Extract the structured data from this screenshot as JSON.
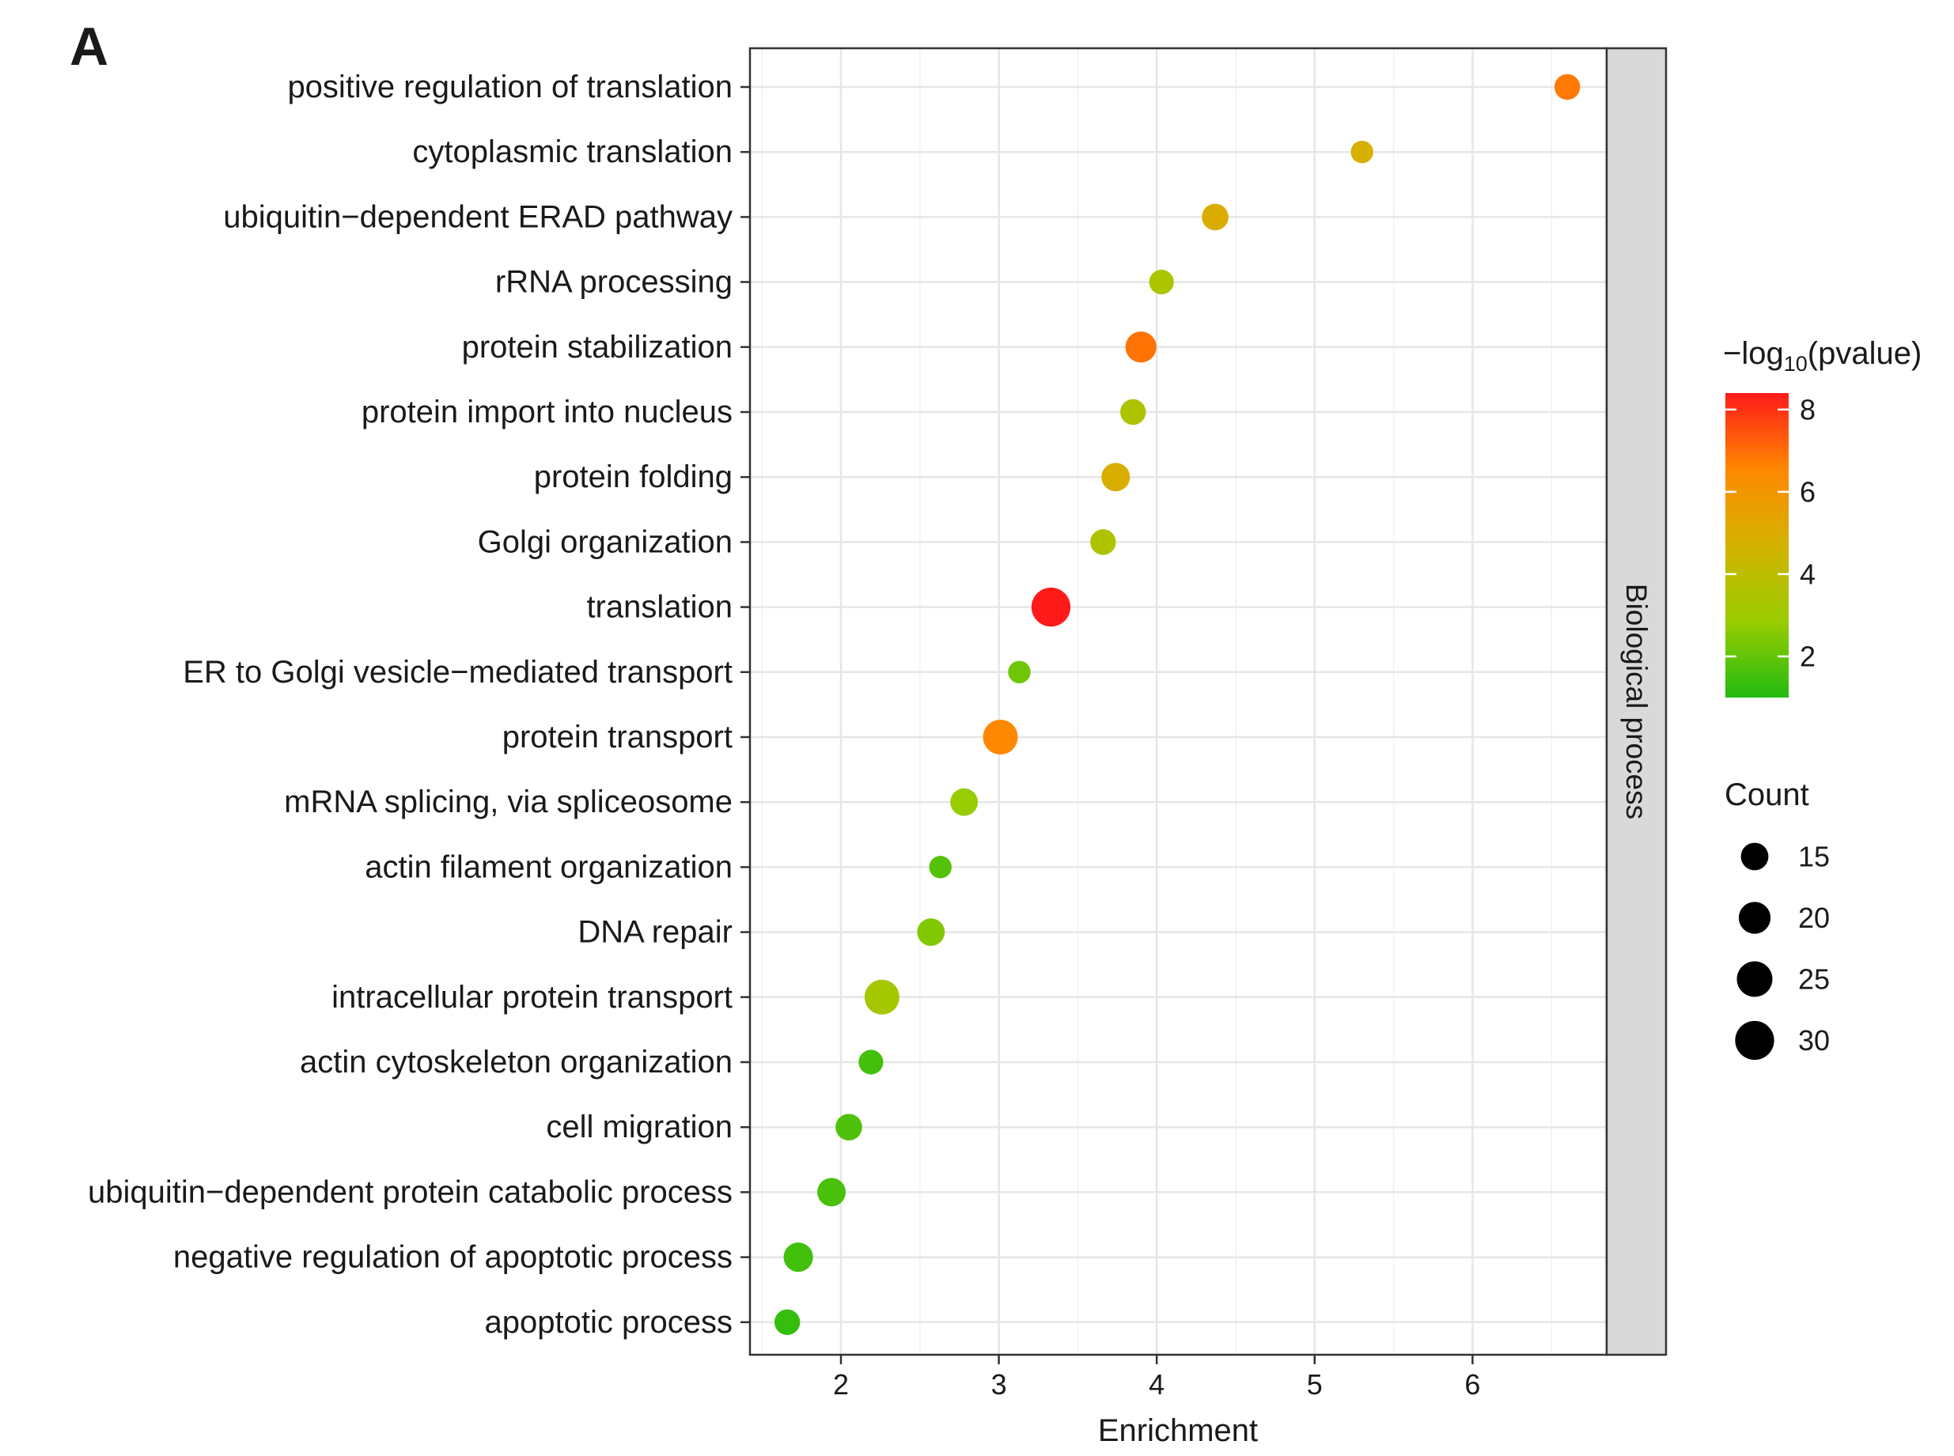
{
  "panel_label": "A",
  "chart_data": {
    "type": "scatter",
    "title": "",
    "xlabel": "Enrichment",
    "ylabel": "",
    "xlim": [
      1.4,
      6.84
    ],
    "x_ticks": [
      2,
      3,
      4,
      5,
      6
    ],
    "grid": true,
    "facet_label": "Biological process",
    "categories": [
      "positive regulation of translation",
      "cytoplasmic translation",
      "ubiquitin−dependent ERAD pathway",
      "rRNA processing",
      "protein stabilization",
      "protein import into nucleus",
      "protein folding",
      "Golgi organization",
      "translation",
      "ER to Golgi vesicle−mediated transport",
      "protein transport",
      "mRNA splicing, via spliceosome",
      "actin filament organization",
      "DNA repair",
      "intracellular protein transport",
      "actin cytoskeleton organization",
      "cell migration",
      "ubiquitin−dependent protein catabolic process",
      "negative regulation of apoptotic process",
      "apoptotic process"
    ],
    "enrichment": [
      6.6,
      5.3,
      4.37,
      4.03,
      3.9,
      3.85,
      3.74,
      3.66,
      3.33,
      3.13,
      3.01,
      2.78,
      2.63,
      2.57,
      2.26,
      2.19,
      2.05,
      1.94,
      1.73,
      1.66
    ],
    "count": [
      13,
      10,
      14,
      12,
      19,
      13,
      16,
      13,
      30,
      10,
      24,
      15,
      10,
      15,
      24,
      12,
      14,
      16,
      17,
      13
    ],
    "neg_log10_pvalue": [
      6.8,
      4.8,
      5.0,
      3.4,
      6.9,
      3.5,
      4.9,
      3.5,
      8.4,
      2.2,
      6.5,
      2.8,
      1.8,
      2.5,
      3.2,
      1.5,
      1.7,
      1.6,
      1.5,
      1.3
    ],
    "color_legend": {
      "title_prefix": "−log",
      "title_subscript": "10",
      "title_suffix": "(pvalue)",
      "range": [
        1,
        8.4
      ],
      "ticks": [
        2,
        4,
        6,
        8
      ],
      "colors": [
        "#22bb11",
        "#99cc00",
        "#d4b300",
        "#ff8800",
        "#ff1a1a"
      ]
    },
    "size_legend": {
      "title": "Count",
      "values": [
        15,
        20,
        25,
        30
      ]
    }
  }
}
